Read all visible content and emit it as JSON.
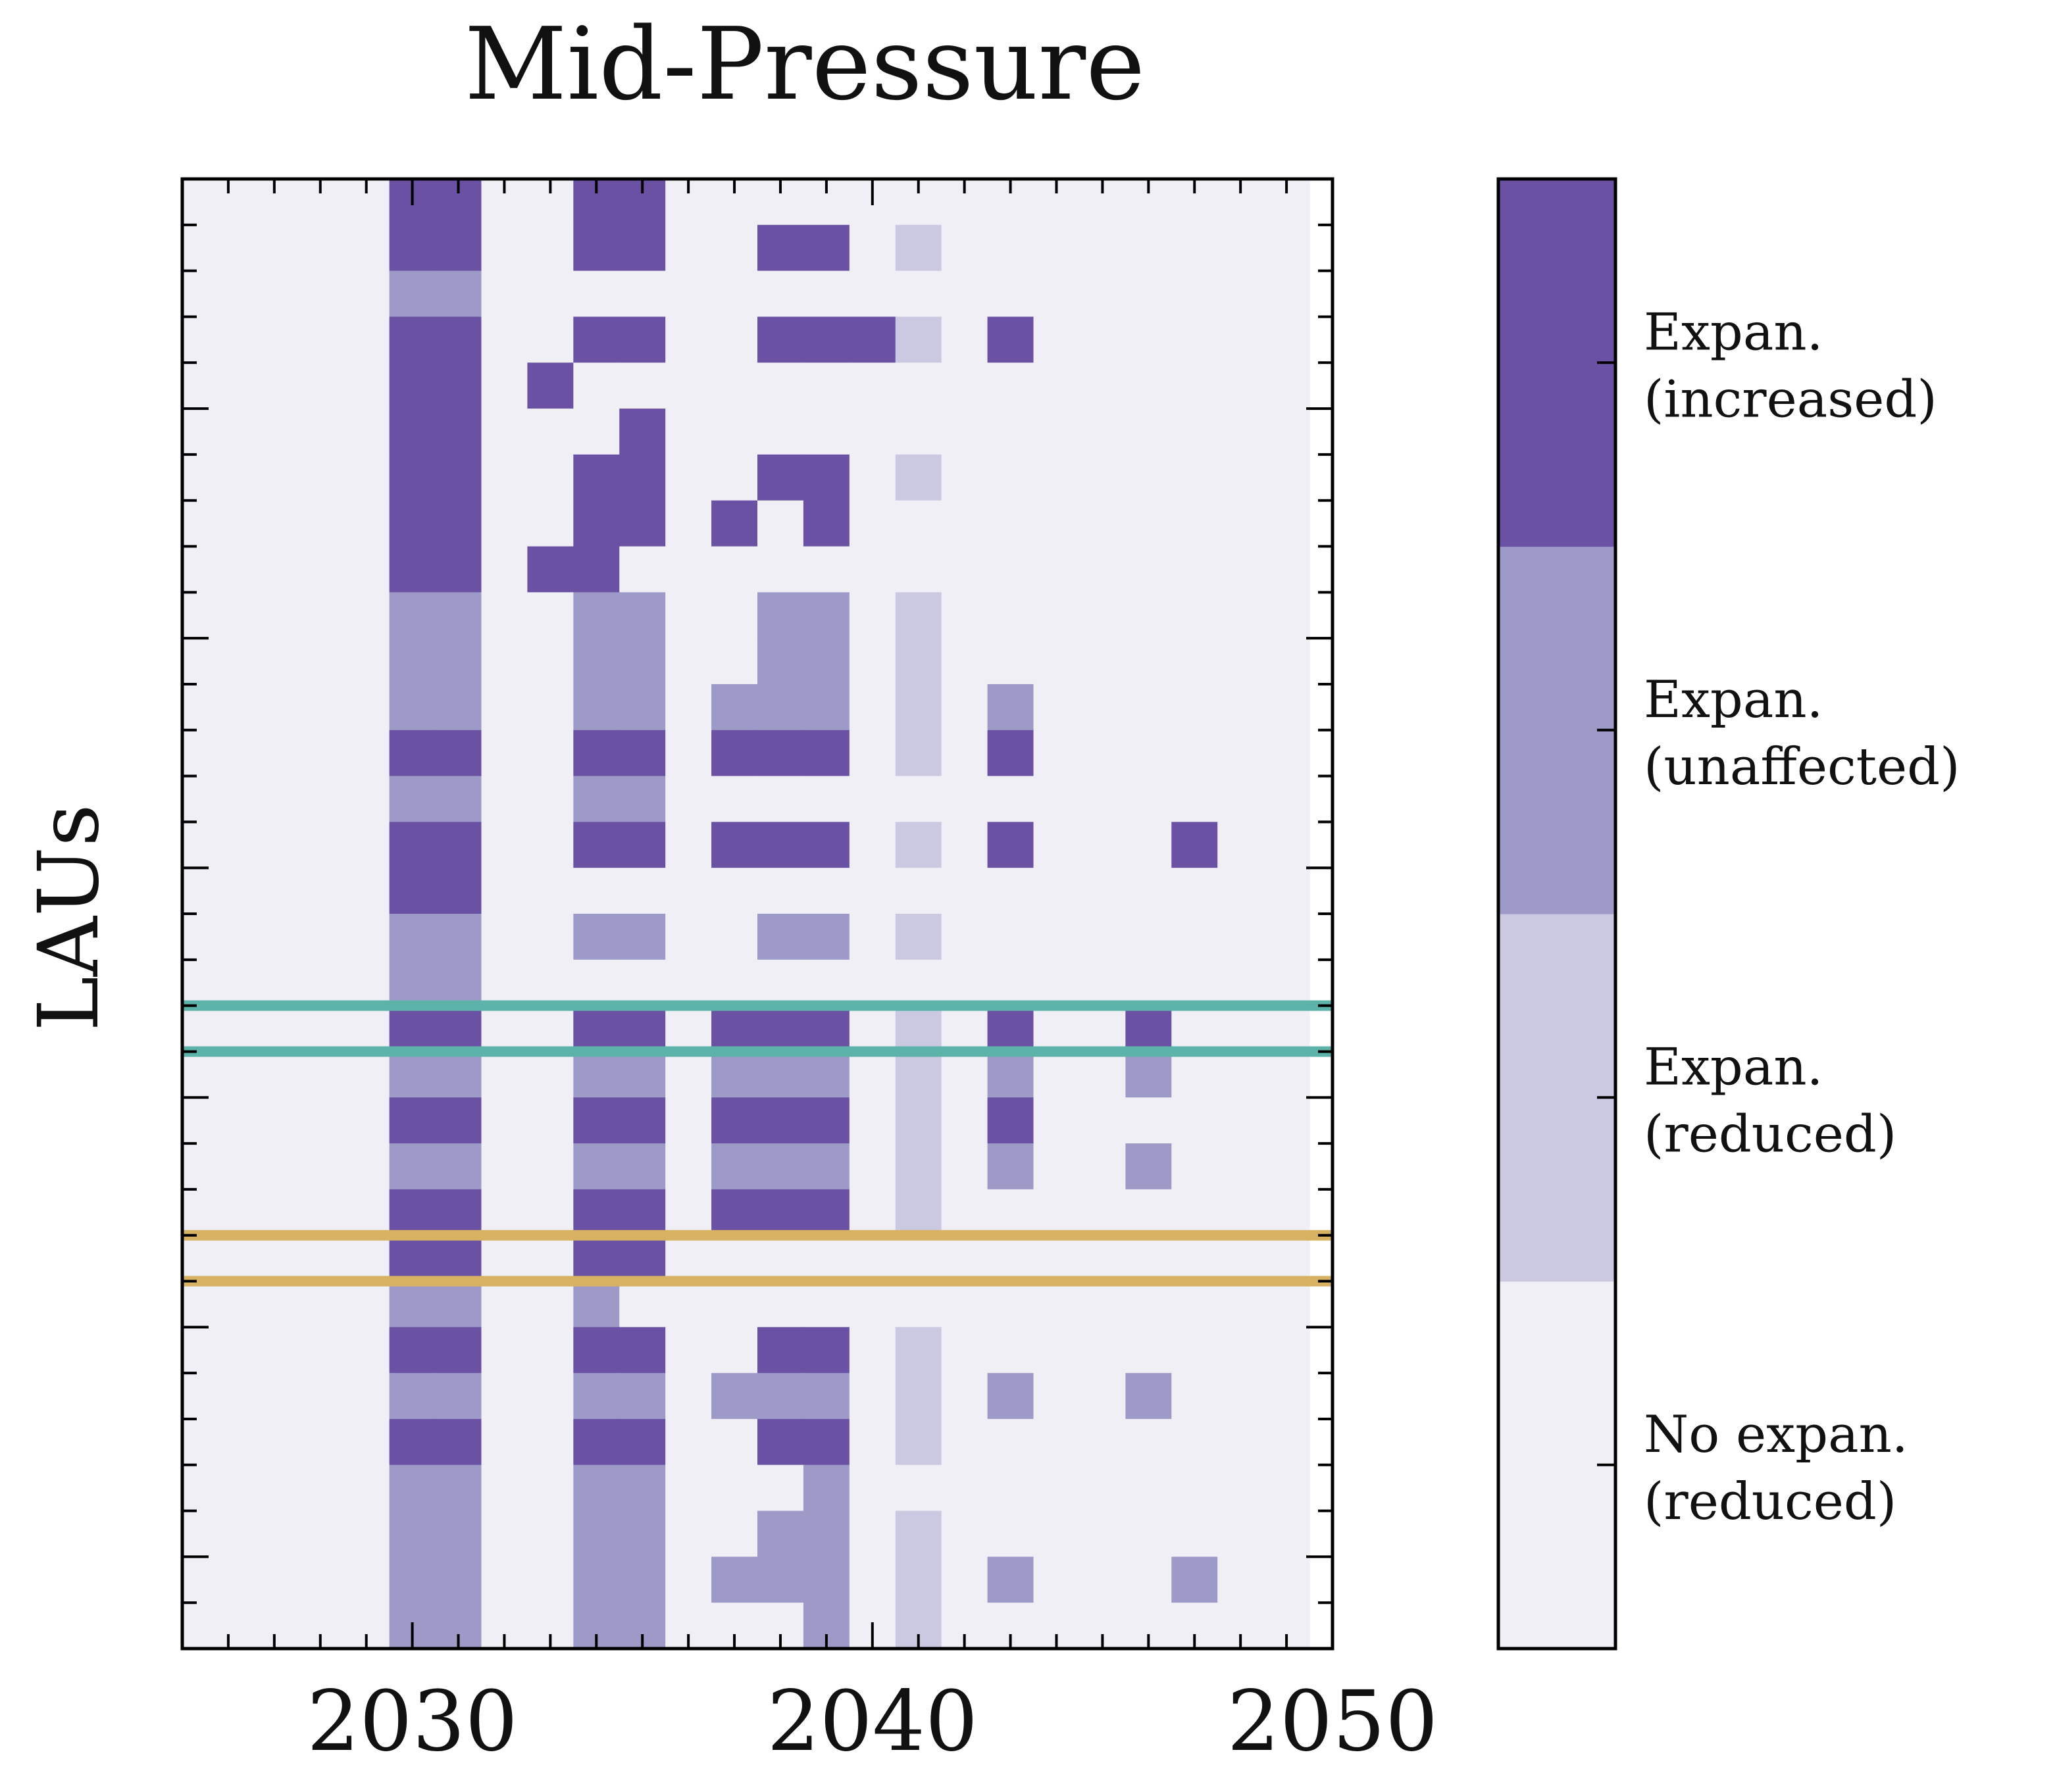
{
  "chart_data": {
    "type": "heatmap",
    "title": "Mid-Pressure",
    "xlabel": "",
    "ylabel": "LAUs",
    "xlim": [
      2025,
      2050
    ],
    "x_ticks": [
      2030,
      2040,
      2050
    ],
    "x_tick_labels": [
      "2030",
      "2040",
      "2050"
    ],
    "x_years": [
      2025,
      2026,
      2027,
      2028,
      2029,
      2030,
      2031,
      2032,
      2033,
      2034,
      2035,
      2036,
      2037,
      2038,
      2039,
      2040,
      2041,
      2042,
      2043,
      2044,
      2045,
      2046,
      2047,
      2048,
      2049
    ],
    "n_rows": 32,
    "legend_placement": "right colorbar",
    "categories": [
      {
        "code": 0,
        "label_line1": "No expan.",
        "label_line2": "(reduced)",
        "color": "#f0eff6"
      },
      {
        "code": 1,
        "label_line1": "Expan.",
        "label_line2": "(reduced)",
        "color": "#cbc8e2"
      },
      {
        "code": 2,
        "label_line1": "Expan.",
        "label_line2": "(unaffected)",
        "color": "#9e9ac8"
      },
      {
        "code": 3,
        "label_line1": "Expan.",
        "label_line2": "(increased)",
        "color": "#6a51a3"
      }
    ],
    "rows": [
      "0000033003300000000000000",
      "0000033003300330100000000",
      "0000022000000000000000000",
      "0000033003300333103000000",
      "0000033030000000000000000",
      "0000033000300000000000000",
      "0000033003300330100000000",
      "0000033003303030000000000",
      "0000033033000000000000000",
      "0000022002200220100000000",
      "0000022002200220100000000",
      "0000022002202220102000000",
      "0000033003303330103000000",
      "0000022002200000000000000",
      "0000033003303330103000300",
      "0000033000000000000000000",
      "0000022002200220100000000",
      "0000022000000000000000000",
      "0000033003303330103003000",
      "0000022002202220102002000",
      "0000033003303330103000000",
      "0000022002202220102002000",
      "0000033003303330100000000",
      "0000033003300000000000000",
      "0000022002000000000000000",
      "0000033003300330100000000",
      "0000022002202220102002000",
      "0000033003300330100000000",
      "0000022002200020000000000",
      "0000022002200220100000000",
      "0000022002202220102000200",
      "0000022002200020100000000"
    ],
    "highlight_lines": [
      {
        "row_boundary": 18,
        "color": "#5cb3a9"
      },
      {
        "row_boundary": 19,
        "color": "#5cb3a9"
      },
      {
        "row_boundary": 23,
        "color": "#d6b262"
      },
      {
        "row_boundary": 24,
        "color": "#d6b262"
      }
    ]
  }
}
